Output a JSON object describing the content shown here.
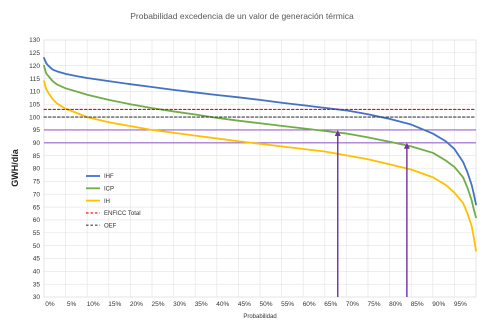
{
  "chart_data": {
    "type": "line",
    "title": "Probabilidad excedencia de un valor de generación térmica",
    "xlabel": "Probabilidad",
    "ylabel": "GWH/día",
    "xlim": [
      0,
      100
    ],
    "ylim": [
      30,
      130
    ],
    "y_ticks": [
      30,
      35,
      40,
      45,
      50,
      55,
      60,
      65,
      70,
      75,
      80,
      85,
      90,
      95,
      100,
      105,
      110,
      115,
      120,
      125,
      130
    ],
    "x_ticks": [
      "0%",
      "5%",
      "10%",
      "15%",
      "20%",
      "25%",
      "30%",
      "35%",
      "40%",
      "45%",
      "50%",
      "55%",
      "60%",
      "65%",
      "70%",
      "75%",
      "80%",
      "85%",
      "90%",
      "95%"
    ],
    "x_tick_values": [
      0,
      5,
      10,
      15,
      20,
      25,
      30,
      35,
      40,
      45,
      50,
      55,
      60,
      65,
      70,
      75,
      80,
      85,
      90,
      95
    ],
    "grid": true,
    "legend_position": "left-middle",
    "series": [
      {
        "name": "IHF",
        "color": "#4472C4",
        "x": [
          0,
          0.5,
          1,
          2,
          3,
          5,
          8,
          10,
          15,
          20,
          25,
          30,
          35,
          40,
          45,
          50,
          55,
          60,
          65,
          70,
          75,
          80,
          85,
          90,
          93,
          95,
          97,
          98,
          99,
          99.5,
          100
        ],
        "y": [
          123,
          121,
          120,
          118.5,
          117.8,
          116.8,
          115.8,
          115.2,
          114,
          112.8,
          111.7,
          110.6,
          109.6,
          108.6,
          107.7,
          106.7,
          105.6,
          104.6,
          103.6,
          102.6,
          101.1,
          99.3,
          97.1,
          93.6,
          90.6,
          87.6,
          82.6,
          78.6,
          73.6,
          70,
          66
        ]
      },
      {
        "name": "ICP",
        "color": "#70AD47",
        "x": [
          0,
          0.5,
          1,
          2,
          3,
          5,
          8,
          10,
          15,
          20,
          25,
          30,
          35,
          40,
          45,
          50,
          55,
          60,
          65,
          70,
          75,
          80,
          85,
          90,
          93,
          95,
          97,
          98,
          99,
          99.5,
          100
        ],
        "y": [
          120,
          117,
          116,
          114,
          112.7,
          111.2,
          109.7,
          108.7,
          106.7,
          105,
          103.5,
          102.2,
          101,
          99.7,
          98.6,
          97.6,
          96.6,
          95.6,
          94.6,
          93.6,
          92.1,
          90.4,
          88.6,
          86.1,
          83.1,
          80.6,
          76.6,
          72.6,
          67.6,
          64,
          61
        ]
      },
      {
        "name": "IH",
        "color": "#FFC000",
        "x": [
          0,
          0.5,
          1,
          2,
          3,
          5,
          8,
          10,
          15,
          20,
          25,
          30,
          35,
          40,
          45,
          50,
          55,
          60,
          65,
          70,
          75,
          80,
          85,
          90,
          93,
          95,
          97,
          98,
          99,
          99.5,
          100
        ],
        "y": [
          114,
          111,
          109.5,
          107,
          105.3,
          103.3,
          101.3,
          100,
          98,
          96.5,
          95,
          93.9,
          92.8,
          91.7,
          90.6,
          89.6,
          88.6,
          87.6,
          86.6,
          85.1,
          83.6,
          81.6,
          79.6,
          76.6,
          73.6,
          70.6,
          66.6,
          62.6,
          57.6,
          53,
          48
        ]
      },
      {
        "name": "ENFICC Total",
        "color": "#FF0000",
        "dashed": true,
        "x": [
          0,
          100
        ],
        "y": [
          103,
          103
        ]
      },
      {
        "name": "OEF",
        "color": "#404040",
        "dashed": true,
        "x": [
          0,
          100
        ],
        "y": [
          100,
          100
        ]
      }
    ],
    "reference_lines": [
      {
        "orientation": "horizontal",
        "y": 95,
        "color": "#9966CC"
      },
      {
        "orientation": "horizontal",
        "y": 90,
        "color": "#9966CC"
      }
    ],
    "arrows": [
      {
        "x": 68,
        "y_from": 30,
        "y_to": 95,
        "color": "#7030A0"
      },
      {
        "x": 84,
        "y_from": 30,
        "y_to": 90,
        "color": "#7030A0"
      }
    ]
  }
}
